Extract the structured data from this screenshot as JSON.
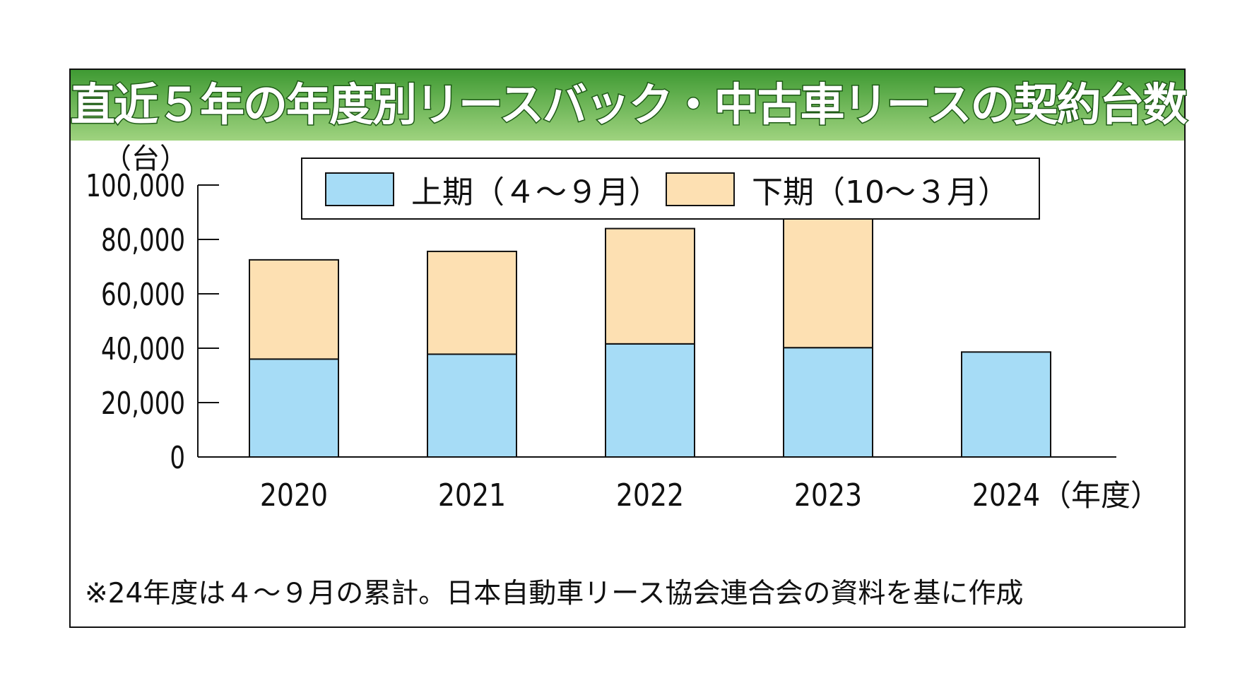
{
  "title": "直近５年の年度別リースバック・中古車リースの契約台数",
  "footnote": "※24年度は４～９月の累計。日本自動車リース協会連合会の資料を基に作成",
  "colors": {
    "first_half": "#a6dcf6",
    "second_half": "#fde0b2",
    "title_bar": "#4da53c"
  },
  "chart_data": {
    "type": "bar",
    "stacked": true,
    "categories": [
      "2020",
      "2021",
      "2022",
      "2023",
      "2024"
    ],
    "x_unit_label": "（年度）",
    "y_unit_label": "（台）",
    "ylim": [
      0,
      100000
    ],
    "yticks": [
      {
        "value": 0,
        "label": "0"
      },
      {
        "value": 20000,
        "label": "20,000"
      },
      {
        "value": 40000,
        "label": "40,000"
      },
      {
        "value": 60000,
        "label": "60,000"
      },
      {
        "value": 80000,
        "label": "80,000"
      },
      {
        "value": 100000,
        "label": "100,000"
      }
    ],
    "series": [
      {
        "name": "上期（４～９月）",
        "values": [
          36000,
          37800,
          41600,
          40200,
          38600
        ]
      },
      {
        "name": "下期（10～３月）",
        "values": [
          36500,
          37800,
          42400,
          50300,
          null
        ]
      }
    ],
    "legend_position": "top"
  }
}
